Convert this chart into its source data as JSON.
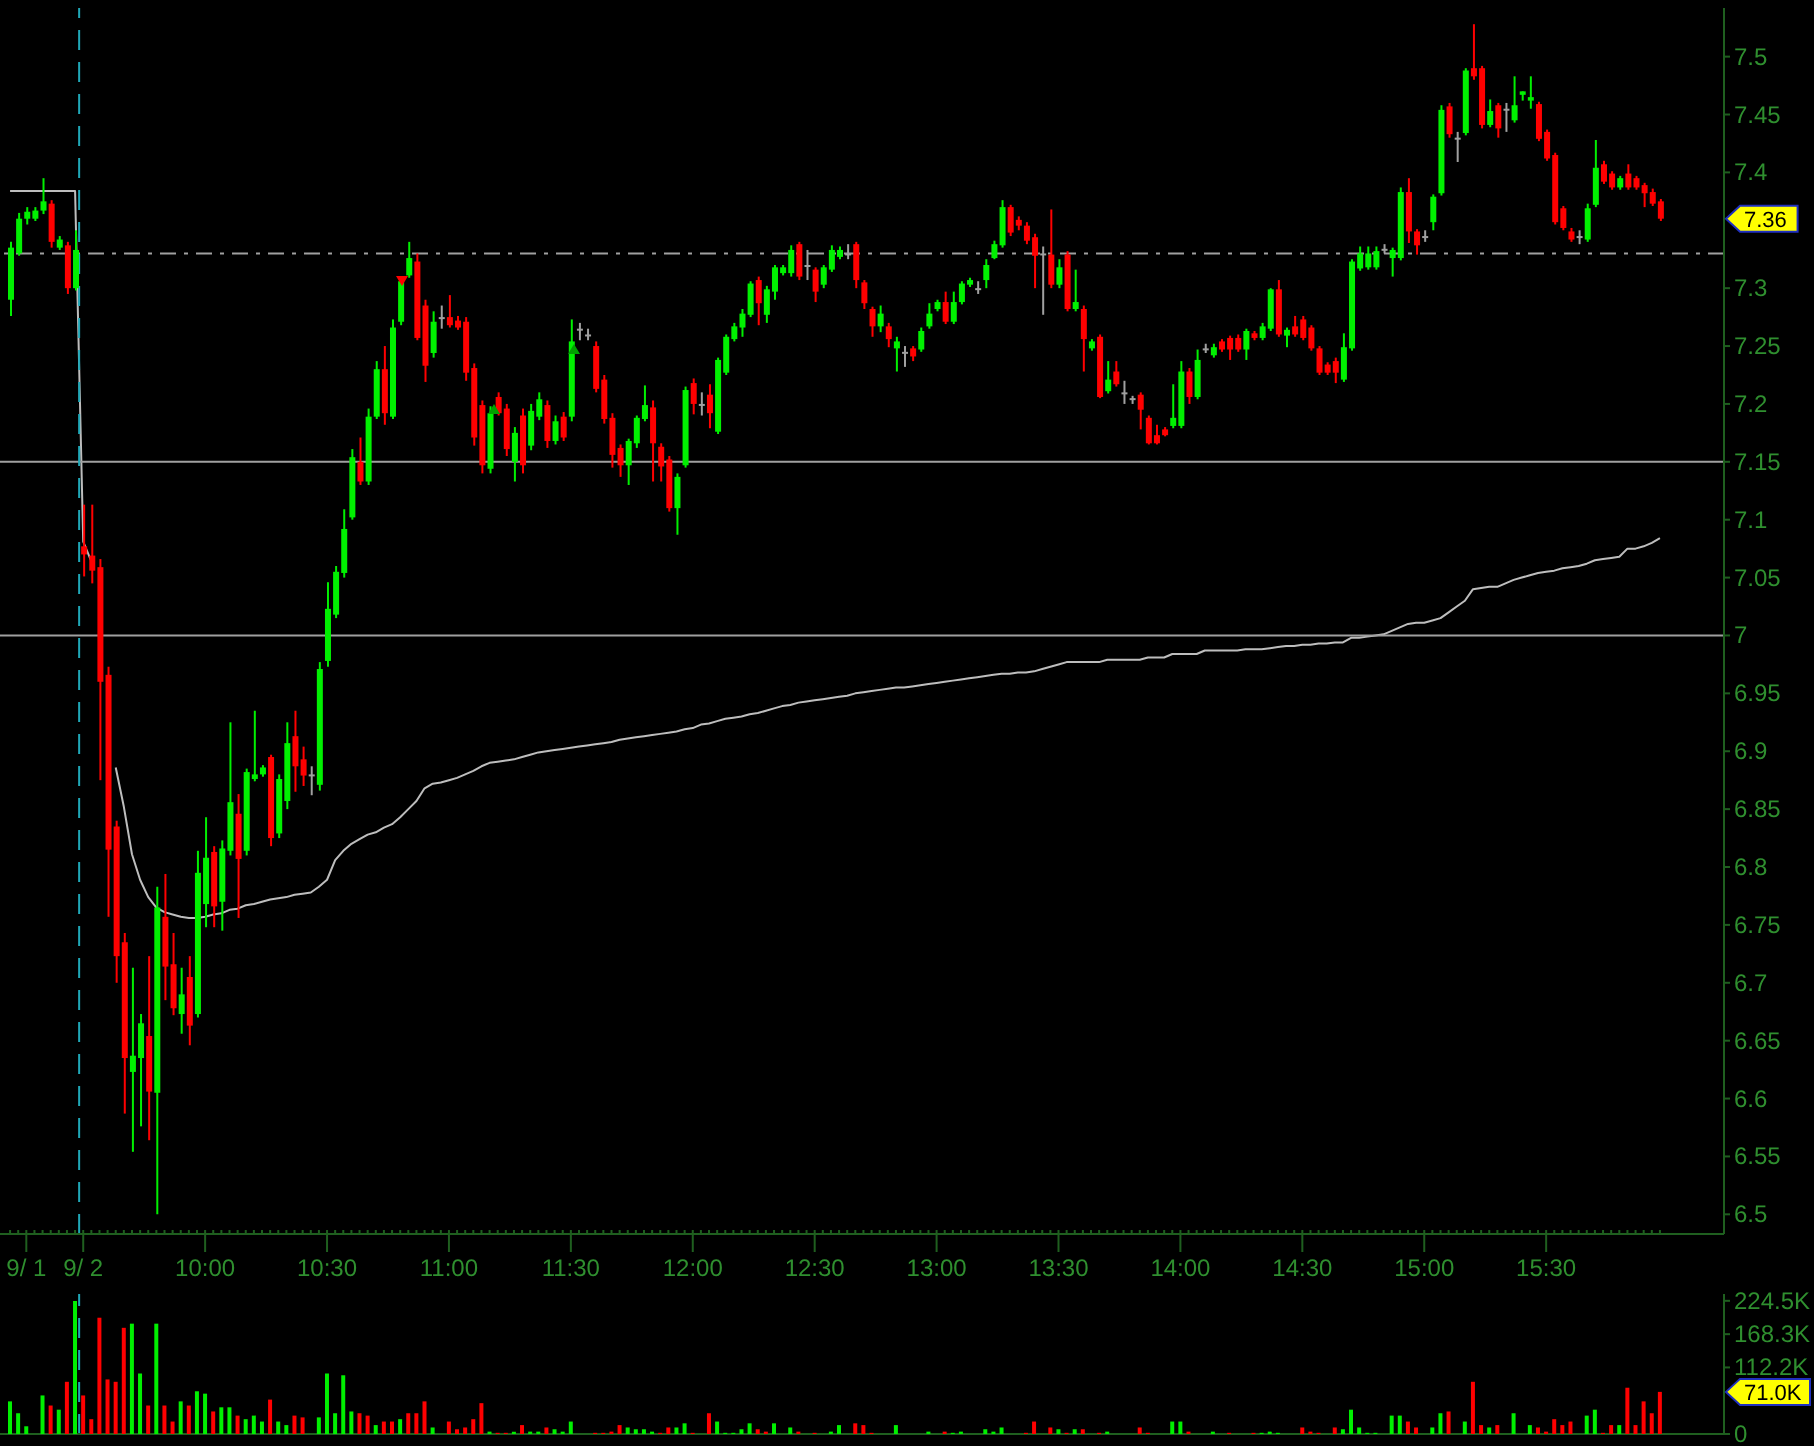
{
  "chart_data": [
    {
      "type": "candlestick",
      "categories": [
        null,
        null,
        "9/ 1",
        null,
        null,
        null,
        null,
        null,
        null,
        "9/ 2",
        null,
        null,
        null,
        null,
        null,
        null,
        null,
        null,
        null,
        null,
        null,
        null,
        null,
        null,
        "10:00",
        null,
        null,
        null,
        null,
        null,
        null,
        null,
        null,
        null,
        null,
        null,
        null,
        null,
        null,
        "10:30",
        null,
        null,
        null,
        null,
        null,
        null,
        null,
        null,
        null,
        null,
        null,
        null,
        null,
        null,
        "11:00",
        null,
        null,
        null,
        null,
        null,
        null,
        null,
        null,
        null,
        null,
        null,
        null,
        null,
        null,
        "11:30",
        null,
        null,
        null,
        null,
        null,
        null,
        null,
        null,
        null,
        null,
        null,
        null,
        null,
        null,
        "12:00",
        null,
        null,
        null,
        null,
        null,
        null,
        null,
        null,
        null,
        null,
        null,
        null,
        null,
        null,
        "12:30",
        null,
        null,
        null,
        null,
        null,
        null,
        null,
        null,
        null,
        null,
        null,
        null,
        null,
        null,
        "13:00",
        null,
        null,
        null,
        null,
        null,
        null,
        null,
        null,
        null,
        null,
        null,
        null,
        null,
        null,
        "13:30",
        null,
        null,
        null,
        null,
        null,
        null,
        null,
        null,
        null,
        null,
        null,
        null,
        null,
        null,
        "14:00",
        null,
        null,
        null,
        null,
        null,
        null,
        null,
        null,
        null,
        null,
        null,
        null,
        null,
        null,
        "14:30",
        null,
        null,
        null,
        null,
        null,
        null,
        null,
        null,
        null,
        null,
        null,
        null,
        null,
        null,
        "15:00",
        null,
        null,
        null,
        null,
        null,
        null,
        null,
        null,
        null,
        null,
        null,
        null,
        null,
        null,
        "15:30",
        null,
        null,
        null,
        null,
        null,
        null,
        null,
        null,
        null,
        null,
        null,
        null,
        null,
        null
      ],
      "ohlc": [
        [
          7.29,
          7.34,
          7.276,
          7.335
        ],
        [
          7.33,
          7.365,
          7.328,
          7.36
        ],
        [
          7.36,
          7.37,
          7.355,
          7.366
        ],
        [
          7.36,
          7.37,
          7.358,
          7.367
        ],
        [
          7.367,
          7.395,
          7.364,
          7.375
        ],
        [
          7.373,
          7.376,
          7.335,
          7.34
        ],
        [
          7.335,
          7.345,
          7.333,
          7.342
        ],
        [
          7.337,
          7.34,
          7.295,
          7.3
        ],
        [
          7.3,
          7.35,
          7.298,
          7.333
        ],
        [
          7.077,
          7.113,
          7.051,
          7.07
        ],
        [
          7.069,
          7.113,
          7.045,
          7.056
        ],
        [
          7.059,
          7.066,
          6.875,
          6.96
        ],
        [
          6.966,
          6.973,
          6.757,
          6.815
        ],
        [
          6.835,
          6.84,
          6.7,
          6.723
        ],
        [
          6.735,
          6.743,
          6.587,
          6.635
        ],
        [
          6.623,
          6.713,
          6.554,
          6.637
        ],
        [
          6.635,
          6.673,
          6.576,
          6.665
        ],
        [
          6.654,
          6.723,
          6.564,
          6.606
        ],
        [
          6.605,
          6.783,
          6.5,
          6.765
        ],
        [
          6.757,
          6.794,
          6.685,
          6.714
        ],
        [
          6.716,
          6.743,
          6.672,
          6.678
        ],
        [
          6.673,
          6.713,
          6.656,
          6.69
        ],
        [
          6.705,
          6.723,
          6.646,
          6.663
        ],
        [
          6.673,
          6.814,
          6.67,
          6.795
        ],
        [
          6.768,
          6.843,
          6.748,
          6.808
        ],
        [
          6.813,
          6.818,
          6.748,
          6.766
        ],
        [
          6.77,
          6.823,
          6.745,
          6.816
        ],
        [
          6.814,
          6.925,
          6.81,
          6.856
        ],
        [
          6.846,
          6.863,
          6.756,
          6.807
        ],
        [
          6.814,
          6.885,
          6.81,
          6.882
        ],
        [
          6.876,
          6.935,
          6.874,
          6.88
        ],
        [
          6.88,
          6.888,
          6.878,
          6.886
        ],
        [
          6.895,
          6.897,
          6.818,
          6.825
        ],
        [
          6.829,
          6.88,
          6.825,
          6.876
        ],
        [
          6.857,
          6.925,
          6.85,
          6.907
        ],
        [
          6.913,
          6.935,
          6.865,
          6.887
        ],
        [
          6.893,
          6.904,
          6.87,
          6.879
        ],
        [
          6.88,
          6.887,
          6.862,
          6.88
        ],
        [
          6.871,
          6.977,
          6.866,
          6.971
        ],
        [
          6.978,
          7.046,
          6.973,
          7.023
        ],
        [
          7.018,
          7.06,
          7.015,
          7.055
        ],
        [
          7.054,
          7.109,
          7.05,
          7.092
        ],
        [
          7.102,
          7.161,
          7.1,
          7.154
        ],
        [
          7.15,
          7.171,
          7.13,
          7.133
        ],
        [
          7.133,
          7.196,
          7.13,
          7.189
        ],
        [
          7.189,
          7.237,
          7.187,
          7.23
        ],
        [
          7.23,
          7.25,
          7.182,
          7.192
        ],
        [
          7.189,
          7.273,
          7.187,
          7.266
        ],
        [
          7.271,
          7.31,
          7.268,
          7.306
        ],
        [
          7.311,
          7.34,
          7.309,
          7.326
        ],
        [
          7.323,
          7.33,
          7.255,
          7.257
        ],
        [
          7.285,
          7.29,
          7.219,
          7.233
        ],
        [
          7.244,
          7.28,
          7.24,
          7.271
        ],
        [
          7.275,
          7.285,
          7.265,
          7.275
        ],
        [
          7.275,
          7.294,
          7.266,
          7.268
        ],
        [
          7.272,
          7.276,
          7.264,
          7.266
        ],
        [
          7.271,
          7.275,
          7.22,
          7.227
        ],
        [
          7.231,
          7.235,
          7.164,
          7.171
        ],
        [
          7.199,
          7.203,
          7.14,
          7.147
        ],
        [
          7.144,
          7.198,
          7.14,
          7.192
        ],
        [
          7.206,
          7.21,
          7.19,
          7.192
        ],
        [
          7.196,
          7.2,
          7.155,
          7.161
        ],
        [
          7.15,
          7.18,
          7.133,
          7.175
        ],
        [
          7.19,
          7.196,
          7.14,
          7.147
        ],
        [
          7.164,
          7.2,
          7.16,
          7.194
        ],
        [
          7.189,
          7.21,
          7.186,
          7.204
        ],
        [
          7.199,
          7.203,
          7.162,
          7.168
        ],
        [
          7.168,
          7.19,
          7.165,
          7.185
        ],
        [
          7.189,
          7.193,
          7.168,
          7.171
        ],
        [
          7.189,
          7.273,
          7.185,
          7.254
        ],
        [
          7.265,
          7.27,
          7.255,
          7.265
        ],
        [
          7.26,
          7.265,
          7.255,
          7.26
        ],
        [
          7.25,
          7.254,
          7.21,
          7.213
        ],
        [
          7.221,
          7.225,
          7.183,
          7.187
        ],
        [
          7.188,
          7.192,
          7.145,
          7.156
        ],
        [
          7.162,
          7.165,
          7.137,
          7.147
        ],
        [
          7.147,
          7.17,
          7.13,
          7.168
        ],
        [
          7.166,
          7.19,
          7.162,
          7.188
        ],
        [
          7.187,
          7.216,
          7.185,
          7.199
        ],
        [
          7.197,
          7.203,
          7.133,
          7.166
        ],
        [
          7.163,
          7.166,
          7.133,
          7.146
        ],
        [
          7.152,
          7.155,
          7.107,
          7.11
        ],
        [
          7.11,
          7.14,
          7.087,
          7.137
        ],
        [
          7.147,
          7.215,
          7.145,
          7.212
        ],
        [
          7.218,
          7.222,
          7.191,
          7.2
        ],
        [
          7.2,
          7.21,
          7.19,
          7.2
        ],
        [
          7.208,
          7.217,
          7.179,
          7.192
        ],
        [
          7.176,
          7.24,
          7.174,
          7.238
        ],
        [
          7.227,
          7.26,
          7.225,
          7.258
        ],
        [
          7.256,
          7.27,
          7.254,
          7.267
        ],
        [
          7.266,
          7.282,
          7.258,
          7.278
        ],
        [
          7.277,
          7.306,
          7.275,
          7.304
        ],
        [
          7.307,
          7.31,
          7.268,
          7.287
        ],
        [
          7.277,
          7.302,
          7.27,
          7.299
        ],
        [
          7.297,
          7.32,
          7.29,
          7.318
        ],
        [
          7.313,
          7.32,
          7.311,
          7.318
        ],
        [
          7.313,
          7.337,
          7.31,
          7.333
        ],
        [
          7.338,
          7.34,
          7.307,
          7.31
        ],
        [
          7.32,
          7.333,
          7.307,
          7.32
        ],
        [
          7.316,
          7.318,
          7.288,
          7.297
        ],
        [
          7.303,
          7.32,
          7.3,
          7.318
        ],
        [
          7.316,
          7.337,
          7.314,
          7.333
        ],
        [
          7.327,
          7.336,
          7.325,
          7.333
        ],
        [
          7.33,
          7.338,
          7.325,
          7.33
        ],
        [
          7.338,
          7.34,
          7.3,
          7.307
        ],
        [
          7.305,
          7.307,
          7.282,
          7.287
        ],
        [
          7.282,
          7.284,
          7.258,
          7.267
        ],
        [
          7.267,
          7.285,
          7.262,
          7.278
        ],
        [
          7.267,
          7.27,
          7.249,
          7.256
        ],
        [
          7.248,
          7.258,
          7.228,
          7.254
        ],
        [
          7.245,
          7.25,
          7.232,
          7.245
        ],
        [
          7.248,
          7.25,
          7.237,
          7.241
        ],
        [
          7.247,
          7.266,
          7.245,
          7.263
        ],
        [
          7.267,
          7.287,
          7.265,
          7.278
        ],
        [
          7.282,
          7.29,
          7.28,
          7.288
        ],
        [
          7.288,
          7.297,
          7.269,
          7.271
        ],
        [
          7.271,
          7.297,
          7.269,
          7.288
        ],
        [
          7.288,
          7.306,
          7.286,
          7.304
        ],
        [
          7.303,
          7.309,
          7.301,
          7.307
        ],
        [
          7.3,
          7.306,
          7.295,
          7.3
        ],
        [
          7.307,
          7.325,
          7.3,
          7.32
        ],
        [
          7.326,
          7.341,
          7.325,
          7.338
        ],
        [
          7.337,
          7.376,
          7.335,
          7.37
        ],
        [
          7.37,
          7.372,
          7.345,
          7.348
        ],
        [
          7.359,
          7.362,
          7.35,
          7.354
        ],
        [
          7.354,
          7.357,
          7.338,
          7.341
        ],
        [
          7.344,
          7.347,
          7.3,
          7.328
        ],
        [
          7.33,
          7.336,
          7.277,
          7.33
        ],
        [
          7.329,
          7.368,
          7.3,
          7.303
        ],
        [
          7.303,
          7.325,
          7.3,
          7.318
        ],
        [
          7.329,
          7.332,
          7.28,
          7.282
        ],
        [
          7.282,
          7.316,
          7.28,
          7.288
        ],
        [
          7.282,
          7.285,
          7.228,
          7.256
        ],
        [
          7.248,
          7.256,
          7.246,
          7.254
        ],
        [
          7.258,
          7.26,
          7.205,
          7.206
        ],
        [
          7.211,
          7.237,
          7.209,
          7.221
        ],
        [
          7.228,
          7.237,
          7.215,
          7.217
        ],
        [
          7.21,
          7.22,
          7.2,
          7.21
        ],
        [
          7.205,
          7.207,
          7.2,
          7.205
        ],
        [
          7.208,
          7.21,
          7.178,
          7.195
        ],
        [
          7.188,
          7.19,
          7.165,
          7.166
        ],
        [
          7.173,
          7.182,
          7.165,
          7.166
        ],
        [
          7.178,
          7.18,
          7.172,
          7.173
        ],
        [
          7.181,
          7.217,
          7.179,
          7.188
        ],
        [
          7.181,
          7.237,
          7.179,
          7.228
        ],
        [
          7.228,
          7.231,
          7.2,
          7.206
        ],
        [
          7.206,
          7.247,
          7.204,
          7.238
        ],
        [
          7.248,
          7.252,
          7.244,
          7.248
        ],
        [
          7.242,
          7.252,
          7.24,
          7.249
        ],
        [
          7.254,
          7.256,
          7.245,
          7.247
        ],
        [
          7.257,
          7.259,
          7.238,
          7.247
        ],
        [
          7.257,
          7.26,
          7.245,
          7.247
        ],
        [
          7.247,
          7.265,
          7.238,
          7.263
        ],
        [
          7.261,
          7.263,
          7.255,
          7.257
        ],
        [
          7.257,
          7.27,
          7.255,
          7.267
        ],
        [
          7.265,
          7.3,
          7.263,
          7.299
        ],
        [
          7.299,
          7.307,
          7.258,
          7.26
        ],
        [
          7.259,
          7.266,
          7.249,
          7.264
        ],
        [
          7.267,
          7.276,
          7.258,
          7.26
        ],
        [
          7.273,
          7.276,
          7.255,
          7.257
        ],
        [
          7.266,
          7.268,
          7.246,
          7.248
        ],
        [
          7.248,
          7.25,
          7.225,
          7.227
        ],
        [
          7.234,
          7.236,
          7.225,
          7.227
        ],
        [
          7.237,
          7.24,
          7.218,
          7.227
        ],
        [
          7.221,
          7.261,
          7.219,
          7.249
        ],
        [
          7.248,
          7.325,
          7.246,
          7.323
        ],
        [
          7.317,
          7.336,
          7.315,
          7.33
        ],
        [
          7.318,
          7.336,
          7.316,
          7.33
        ],
        [
          7.318,
          7.336,
          7.316,
          7.332
        ],
        [
          7.334,
          7.338,
          7.33,
          7.334
        ],
        [
          7.326,
          7.335,
          7.31,
          7.333
        ],
        [
          7.326,
          7.387,
          7.324,
          7.383
        ],
        [
          7.383,
          7.395,
          7.339,
          7.349
        ],
        [
          7.349,
          7.351,
          7.329,
          7.337
        ],
        [
          7.345,
          7.35,
          7.34,
          7.345
        ],
        [
          7.357,
          7.381,
          7.35,
          7.379
        ],
        [
          7.382,
          7.458,
          7.38,
          7.454
        ],
        [
          7.457,
          7.46,
          7.43,
          7.433
        ],
        [
          7.43,
          7.435,
          7.409,
          7.43
        ],
        [
          7.434,
          7.49,
          7.432,
          7.488
        ],
        [
          7.49,
          7.528,
          7.48,
          7.483
        ],
        [
          7.49,
          7.492,
          7.438,
          7.441
        ],
        [
          7.441,
          7.463,
          7.439,
          7.453
        ],
        [
          7.458,
          7.46,
          7.43,
          7.438
        ],
        [
          7.455,
          7.46,
          7.435,
          7.455
        ],
        [
          7.445,
          7.483,
          7.443,
          7.458
        ],
        [
          7.467,
          7.47,
          7.462,
          7.47
        ],
        [
          7.462,
          7.483,
          7.455,
          7.465
        ],
        [
          7.459,
          7.461,
          7.427,
          7.429
        ],
        [
          7.435,
          7.437,
          7.41,
          7.412
        ],
        [
          7.415,
          7.417,
          7.355,
          7.357
        ],
        [
          7.369,
          7.371,
          7.35,
          7.352
        ],
        [
          7.349,
          7.352,
          7.34,
          7.342
        ],
        [
          7.345,
          7.35,
          7.338,
          7.345
        ],
        [
          7.342,
          7.373,
          7.34,
          7.369
        ],
        [
          7.372,
          7.428,
          7.37,
          7.404
        ],
        [
          7.407,
          7.41,
          7.39,
          7.392
        ],
        [
          7.399,
          7.401,
          7.385,
          7.387
        ],
        [
          7.387,
          7.397,
          7.385,
          7.395
        ],
        [
          7.399,
          7.407,
          7.385,
          7.387
        ],
        [
          7.395,
          7.397,
          7.385,
          7.387
        ],
        [
          7.389,
          7.391,
          7.37,
          7.382
        ],
        [
          7.383,
          7.386,
          7.371,
          7.373
        ],
        [
          7.375,
          7.377,
          7.358,
          7.36
        ]
      ],
      "colors": [
        "#00f000",
        "#00f000",
        "#00f000",
        "#00f000",
        "#00f000",
        "#ff0000",
        "#00f000",
        "#ff0000",
        "#00f000",
        "#ff0000",
        "#ff0000",
        "#ff0000",
        "#ff0000",
        "#ff0000",
        "#ff0000",
        "#00f000",
        "#00f000",
        "#ff0000",
        "#00f000",
        "#ff0000",
        "#ff0000",
        "#00f000",
        "#ff0000",
        "#00f000",
        "#00f000",
        "#ff0000",
        "#00f000",
        "#00f000",
        "#ff0000",
        "#00f000",
        "#00f000",
        "#00f000",
        "#ff0000",
        "#00f000",
        "#00f000",
        "#ff0000",
        "#ff0000",
        "#a0a0a0",
        "#00f000",
        "#00f000",
        "#00f000",
        "#00f000",
        "#00f000",
        "#ff0000",
        "#00f000",
        "#00f000",
        "#ff0000",
        "#00f000",
        "#00f000",
        "#00f000",
        "#ff0000",
        "#ff0000",
        "#00f000",
        "#a0a0a0",
        "#ff0000",
        "#ff0000",
        "#ff0000",
        "#ff0000",
        "#ff0000",
        "#00f000",
        "#ff0000",
        "#ff0000",
        "#00f000",
        "#ff0000",
        "#00f000",
        "#00f000",
        "#ff0000",
        "#00f000",
        "#ff0000",
        "#00f000",
        "#a0a0a0",
        "#a0a0a0",
        "#ff0000",
        "#ff0000",
        "#ff0000",
        "#ff0000",
        "#00f000",
        "#00f000",
        "#00f000",
        "#ff0000",
        "#ff0000",
        "#ff0000",
        "#00f000",
        "#00f000",
        "#ff0000",
        "#a0a0a0",
        "#ff0000",
        "#00f000",
        "#00f000",
        "#00f000",
        "#00f000",
        "#00f000",
        "#ff0000",
        "#00f000",
        "#00f000",
        "#00f000",
        "#00f000",
        "#ff0000",
        "#a0a0a0",
        "#ff0000",
        "#00f000",
        "#00f000",
        "#00f000",
        "#a0a0a0",
        "#ff0000",
        "#ff0000",
        "#ff0000",
        "#00f000",
        "#ff0000",
        "#00f000",
        "#a0a0a0",
        "#ff0000",
        "#00f000",
        "#00f000",
        "#00f000",
        "#ff0000",
        "#00f000",
        "#00f000",
        "#00f000",
        "#a0a0a0",
        "#00f000",
        "#00f000",
        "#00f000",
        "#ff0000",
        "#ff0000",
        "#ff0000",
        "#ff0000",
        "#a0a0a0",
        "#ff0000",
        "#00f000",
        "#ff0000",
        "#00f000",
        "#ff0000",
        "#00f000",
        "#ff0000",
        "#00f000",
        "#ff0000",
        "#a0a0a0",
        "#a0a0a0",
        "#ff0000",
        "#ff0000",
        "#ff0000",
        "#ff0000",
        "#00f000",
        "#00f000",
        "#ff0000",
        "#00f000",
        "#a0a0a0",
        "#00f000",
        "#ff0000",
        "#ff0000",
        "#ff0000",
        "#00f000",
        "#ff0000",
        "#00f000",
        "#00f000",
        "#ff0000",
        "#00f000",
        "#ff0000",
        "#ff0000",
        "#ff0000",
        "#ff0000",
        "#ff0000",
        "#ff0000",
        "#00f000",
        "#00f000",
        "#00f000",
        "#00f000",
        "#00f000",
        "#a0a0a0",
        "#00f000",
        "#00f000",
        "#ff0000",
        "#ff0000",
        "#a0a0a0",
        "#00f000",
        "#00f000",
        "#ff0000",
        "#a0a0a0",
        "#00f000",
        "#ff0000",
        "#ff0000",
        "#00f000",
        "#ff0000",
        "#a0a0a0",
        "#00f000",
        "#00f000",
        "#00f000",
        "#ff0000",
        "#ff0000",
        "#ff0000",
        "#ff0000",
        "#ff0000",
        "#a0a0a0",
        "#00f000",
        "#00f000",
        "#ff0000",
        "#ff0000",
        "#00f000",
        "#ff0000",
        "#ff0000",
        "#ff0000",
        "#ff0000",
        "#ff0000"
      ],
      "series": [
        {
          "type": "line",
          "color": "#bdbdbd",
          "values": [
            7.384,
            7.384,
            7.384,
            7.384,
            7.384,
            7.384,
            7.384,
            7.384,
            7.384,
            7.081,
            7.064,
            null,
            null,
            6.886,
            6.852,
            6.811,
            6.789,
            6.774,
            6.765,
            6.761,
            6.759,
            6.757,
            6.756,
            6.756,
            6.757,
            6.759,
            6.76,
            6.763,
            6.764,
            6.767,
            6.768,
            6.77,
            6.772,
            6.773,
            6.774,
            6.776,
            6.777,
            6.778,
            6.783,
            6.789,
            6.806,
            6.814,
            6.82,
            6.824,
            6.828,
            6.83,
            6.834,
            6.837,
            6.843,
            6.85,
            6.857,
            6.868,
            6.872,
            6.873,
            6.875,
            6.877,
            6.88,
            6.883,
            6.887,
            6.89,
            6.891,
            6.892,
            6.893,
            6.895,
            6.897,
            6.899,
            6.9,
            6.901,
            6.902,
            6.903,
            6.904,
            6.905,
            6.906,
            6.907,
            6.908,
            6.91,
            6.911,
            6.912,
            6.913,
            6.914,
            6.915,
            6.916,
            6.917,
            6.919,
            6.92,
            6.923,
            6.924,
            6.926,
            6.928,
            6.929,
            6.93,
            6.932,
            6.933,
            6.935,
            6.937,
            6.939,
            6.94,
            6.942,
            6.943,
            6.944,
            6.945,
            6.946,
            6.947,
            6.948,
            6.95,
            6.951,
            6.952,
            6.953,
            6.954,
            6.955,
            6.955,
            6.956,
            6.957,
            6.958,
            6.959,
            6.96,
            6.961,
            6.962,
            6.963,
            6.964,
            6.965,
            6.966,
            6.967,
            6.967,
            6.968,
            6.968,
            6.969,
            6.971,
            6.973,
            6.975,
            6.977,
            6.977,
            6.977,
            6.977,
            6.977,
            6.979,
            6.979,
            6.979,
            6.979,
            6.979,
            6.981,
            6.981,
            6.981,
            6.984,
            6.984,
            6.984,
            6.984,
            6.987,
            6.987,
            6.987,
            6.987,
            6.987,
            6.988,
            6.988,
            6.988,
            6.989,
            6.99,
            6.991,
            6.991,
            6.992,
            6.992,
            6.993,
            6.993,
            6.994,
            6.994,
            6.998,
            6.998,
            6.999,
            7.0,
            7.001,
            7.004,
            7.007,
            7.01,
            7.011,
            7.011,
            7.013,
            7.015,
            7.02,
            7.025,
            7.03,
            7.04,
            7.041,
            7.042,
            7.042,
            7.045,
            7.048,
            7.05,
            7.052,
            7.054,
            7.055,
            7.056,
            7.058,
            7.059,
            7.06,
            7.062,
            7.065,
            7.066,
            7.067,
            7.068,
            7.075,
            7.075,
            7.077,
            7.08,
            7.084
          ]
        }
      ],
      "ylim": [
        6.483,
        7.542
      ],
      "yticks": [
        6.5,
        6.55,
        6.6,
        6.65,
        6.7,
        6.75,
        6.8,
        6.85,
        6.9,
        6.95,
        7,
        7.05,
        7.1,
        7.15,
        7.2,
        7.25,
        7.3,
        7.4,
        7.45,
        7.5
      ],
      "ref_lines": [
        {
          "axis": "y",
          "value": 7.15,
          "color": "#a0a0a0"
        },
        {
          "axis": "y",
          "value": 7,
          "color": "#a0a0a0"
        },
        {
          "axis": "y",
          "value": 7.33,
          "color": "#a0a0a0",
          "line_style": "dashed"
        },
        {
          "axis": "x",
          "value": "9/ 2",
          "color": "#20a8b8",
          "line_style": "dashed"
        }
      ],
      "annotations": [
        "7.36"
      ]
    },
    {
      "type": "bar",
      "categories": [
        null,
        null,
        "9/ 1",
        null,
        null,
        null,
        null,
        null,
        null,
        "9/ 2",
        null,
        null,
        null,
        null,
        null,
        null,
        null,
        null,
        null,
        null,
        null,
        null,
        null,
        null,
        "10:00",
        null,
        null,
        null,
        null,
        null,
        null,
        null,
        null,
        null,
        null,
        null,
        null,
        null,
        null,
        "10:30",
        null,
        null,
        null,
        null,
        null,
        null,
        null,
        null,
        null,
        null,
        null,
        null,
        null,
        null,
        "11:00",
        null,
        null,
        null,
        null,
        null,
        null,
        null,
        null,
        null,
        null,
        null,
        null,
        null,
        null,
        "11:30",
        null,
        null,
        null,
        null,
        null,
        null,
        null,
        null,
        null,
        null,
        null,
        null,
        null,
        null,
        "12:00",
        null,
        null,
        null,
        null,
        null,
        null,
        null,
        null,
        null,
        null,
        null,
        null,
        null,
        null,
        "12:30",
        null,
        null,
        null,
        null,
        null,
        null,
        null,
        null,
        null,
        null,
        null,
        null,
        null,
        null,
        "13:00",
        null,
        null,
        null,
        null,
        null,
        null,
        null,
        null,
        null,
        null,
        null,
        null,
        null,
        null,
        "13:30",
        null,
        null,
        null,
        null,
        null,
        null,
        null,
        null,
        null,
        null,
        null,
        null,
        null,
        null,
        "14:00",
        null,
        null,
        null,
        null,
        null,
        null,
        null,
        null,
        null,
        null,
        null,
        null,
        null,
        null,
        "14:30",
        null,
        null,
        null,
        null,
        null,
        null,
        null,
        null,
        null,
        null,
        null,
        null,
        null,
        null,
        "15:00",
        null,
        null,
        null,
        null,
        null,
        null,
        null,
        null,
        null,
        null,
        null,
        null,
        null,
        null,
        "15:30",
        null,
        null,
        null,
        null,
        null,
        null,
        null,
        null,
        null,
        null,
        null,
        null,
        null,
        null
      ],
      "values": [
        55000,
        35000,
        13000,
        null,
        65000,
        48000,
        41000,
        88000,
        224000,
        65000,
        25000,
        196000,
        92000,
        88000,
        179000,
        186000,
        102000,
        48000,
        186000,
        48000,
        21000,
        55000,
        48000,
        72000,
        68000,
        38000,
        45000,
        45000,
        31000,
        25000,
        31000,
        21000,
        58000,
        21000,
        15000,
        31000,
        28000,
        null,
        28000,
        102000,
        35000,
        99000,
        38000,
        35000,
        31000,
        15000,
        21000,
        21000,
        25000,
        35000,
        35000,
        55000,
        11000,
        null,
        21000,
        8000,
        11000,
        25000,
        52000,
        4000,
        2000,
        2000,
        4000,
        15000,
        4000,
        4000,
        11000,
        8000,
        4000,
        21000,
        null,
        null,
        2000,
        2000,
        4000,
        15000,
        11000,
        8000,
        8000,
        4000,
        2000,
        11000,
        11000,
        18000,
        2000,
        null,
        35000,
        21000,
        2000,
        2000,
        8000,
        18000,
        8000,
        4000,
        18000,
        null,
        11000,
        4000,
        null,
        2000,
        null,
        4000,
        15000,
        null,
        18000,
        15000,
        2000,
        null,
        null,
        15000,
        null,
        null,
        null,
        4000,
        null,
        4000,
        2000,
        4000,
        null,
        null,
        8000,
        4000,
        11000,
        null,
        null,
        2000,
        21000,
        null,
        11000,
        8000,
        2000,
        8000,
        8000,
        null,
        2000,
        4000,
        null,
        null,
        null,
        11000,
        2000,
        null,
        null,
        21000,
        21000,
        4000,
        null,
        null,
        4000,
        null,
        2000,
        null,
        null,
        2000,
        2000,
        4000,
        2000,
        null,
        null,
        11000,
        4000,
        2000,
        null,
        11000,
        8000,
        41000,
        11000,
        2000,
        2000,
        null,
        31000,
        31000,
        21000,
        11000,
        null,
        11000,
        35000,
        38000,
        null,
        21000,
        88000,
        15000,
        11000,
        15000,
        null,
        35000,
        null,
        15000,
        11000,
        4000,
        25000,
        15000,
        21000,
        null,
        31000,
        41000,
        2000,
        15000,
        15000,
        78000,
        15000,
        55000,
        35000,
        71000
      ],
      "colors": [
        "#00f000",
        "#00f000",
        "#00f000",
        "#00f000",
        "#00f000",
        "#ff0000",
        "#00f000",
        "#ff0000",
        "#00f000",
        "#ff0000",
        "#ff0000",
        "#ff0000",
        "#ff0000",
        "#ff0000",
        "#ff0000",
        "#00f000",
        "#00f000",
        "#ff0000",
        "#00f000",
        "#ff0000",
        "#ff0000",
        "#00f000",
        "#ff0000",
        "#00f000",
        "#00f000",
        "#ff0000",
        "#00f000",
        "#00f000",
        "#ff0000",
        "#00f000",
        "#00f000",
        "#00f000",
        "#ff0000",
        "#00f000",
        "#00f000",
        "#ff0000",
        "#ff0000",
        "#00f000",
        "#00f000",
        "#00f000",
        "#00f000",
        "#00f000",
        "#00f000",
        "#ff0000",
        "#ff0000",
        "#00f000",
        "#ff0000",
        "#ff0000",
        "#00f000",
        "#ff0000",
        "#ff0000",
        "#ff0000",
        "#00f000",
        "#00f000",
        "#ff0000",
        "#ff0000",
        "#ff0000",
        "#ff0000",
        "#ff0000",
        "#00f000",
        "#ff0000",
        "#ff0000",
        "#00f000",
        "#ff0000",
        "#00f000",
        "#00f000",
        "#ff0000",
        "#00f000",
        "#00f000",
        "#00f000",
        "#00f000",
        "#00f000",
        "#ff0000",
        "#ff0000",
        "#ff0000",
        "#ff0000",
        "#00f000",
        "#00f000",
        "#00f000",
        "#00f000",
        "#ff0000",
        "#ff0000",
        "#00f000",
        "#00f000",
        "#ff0000",
        "#00f000",
        "#ff0000",
        "#00f000",
        "#00f000",
        "#00f000",
        "#00f000",
        "#00f000",
        "#ff0000",
        "#ff0000",
        "#00f000",
        "#00f000",
        "#00f000",
        "#ff0000",
        "#00f000",
        "#ff0000",
        "#00f000",
        "#00f000",
        "#00f000",
        "#00f000",
        "#ff0000",
        "#ff0000",
        "#ff0000",
        "#00f000",
        "#00f000",
        "#00f000",
        "#00f000",
        "#00f000",
        "#00f000",
        "#00f000",
        "#00f000",
        "#ff0000",
        "#00f000",
        "#00f000",
        "#00f000",
        "#00f000",
        "#00f000",
        "#00f000",
        "#00f000",
        "#ff0000",
        "#ff0000",
        "#ff0000",
        "#ff0000",
        "#00f000",
        "#ff0000",
        "#00f000",
        "#ff0000",
        "#00f000",
        "#ff0000",
        "#00f000",
        "#ff0000",
        "#00f000",
        "#ff0000",
        "#00f000",
        "#00f000",
        "#ff0000",
        "#ff0000",
        "#ff0000",
        "#ff0000",
        "#00f000",
        "#00f000",
        "#ff0000",
        "#00f000",
        "#00f000",
        "#00f000",
        "#ff0000",
        "#ff0000",
        "#ff0000",
        "#00f000",
        "#ff0000",
        "#00f000",
        "#00f000",
        "#00f000",
        "#00f000",
        "#ff0000",
        "#ff0000",
        "#ff0000",
        "#ff0000",
        "#ff0000",
        "#ff0000",
        "#00f000",
        "#00f000",
        "#00f000",
        "#00f000",
        "#00f000",
        "#00f000",
        "#00f000",
        "#00f000",
        "#ff0000",
        "#ff0000",
        "#00f000",
        "#00f000",
        "#00f000",
        "#ff0000",
        "#00f000",
        "#00f000",
        "#ff0000",
        "#ff0000",
        "#00f000",
        "#ff0000",
        "#00f000",
        "#00f000",
        "#00f000",
        "#00f000",
        "#ff0000",
        "#ff0000",
        "#ff0000",
        "#ff0000",
        "#ff0000",
        "#00f000",
        "#00f000",
        "#00f000",
        "#ff0000",
        "#ff0000",
        "#00f000",
        "#ff0000",
        "#ff0000",
        "#ff0000",
        "#ff0000",
        "#ff0000"
      ],
      "ylim": [
        0,
        236000
      ],
      "yticks": [
        0,
        {
          "value": 112200,
          "label": "112.2K"
        },
        {
          "value": 168300,
          "label": "168.3K"
        },
        {
          "value": 224500,
          "label": "224.5K"
        }
      ],
      "tick_labels": "y",
      "ref_lines": [
        {
          "axis": "x",
          "value": "9/ 2",
          "color": "#20a8b8",
          "line_style": "dashed"
        }
      ],
      "annotations": [
        "71.0K"
      ]
    }
  ]
}
